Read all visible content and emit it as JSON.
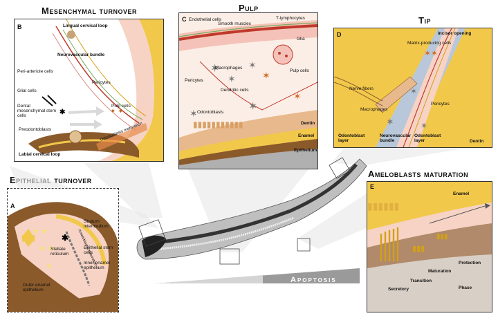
{
  "titles": {
    "mesenchymal": "Mesenchymal turnover",
    "pulp": "Pulp",
    "tip": "Tip",
    "epithelial": "Epithelial turnover",
    "ameloblasts": "Ameloblasts maturation",
    "apoptosis": "Apoptosis"
  },
  "panel_b": {
    "letter": "B",
    "labels": {
      "lingual": "Lingual cervical loop",
      "neurovascular": "Neurovascular bundle",
      "periarteriole": "Peri-arteriole cells",
      "pericytes": "Pericytes",
      "glial": "Glial cells",
      "dental_msc": "Dental mesenchymal stem cells",
      "pulp_cells": "Pulp cells",
      "preodontoblasts": "Preodontoblasts",
      "odonto_maturation": "Odontoblasts maturation",
      "labial": "Labial cervical loop"
    }
  },
  "panel_c": {
    "letter": "C",
    "labels": {
      "endothelial": "Endothelial cells",
      "smooth_muscles": "Smooth muscles",
      "t_lymphocytes": "T-lymphocytes",
      "glia": "Glia",
      "macrophages": "Macrophages",
      "pulp_cells": "Pulp cells",
      "pericytes": "Pericytes",
      "dendritic": "Dendritic cells",
      "odontoblasts": "Odontoblasts",
      "dentin": "Dentin",
      "enamel": "Enamel",
      "epithelium": "Epithelium"
    }
  },
  "panel_d": {
    "letter": "D",
    "labels": {
      "incisor_opening": "Incisor opening",
      "matrix": "Matrix-producing cells",
      "nerve": "Nerve fibers",
      "macrophages": "Macrophages",
      "pericytes": "Pericytes",
      "odonto_layer_left": "Odontoblast layer",
      "neurovascular": "Neurovascular bundle",
      "odonto_layer_right": "Odontoblast layer",
      "dentin": "Dentin"
    }
  },
  "panel_a": {
    "letter": "A",
    "labels": {
      "stratum": "Stratum intermedium",
      "epi_stem": "Epithelial stem cells",
      "stellate": "Stellate reticulum",
      "inner_enamel": "Inner enamel epithelium",
      "outer_enamel": "Outer enamel epithelium",
      "ameloblast_maturation": "Ameloblasts maturation"
    }
  },
  "panel_e": {
    "letter": "E",
    "labels": {
      "enamel": "Enamel",
      "protection": "Protection",
      "maturation": "Maturation",
      "transition": "Transition",
      "secretory": "Secretory",
      "phase": "Phase"
    }
  },
  "colors": {
    "brown": "#8b5a2b",
    "enamel_yellow": "#f2c84b",
    "pink": "#f6d3c5",
    "red": "#c0392b",
    "gray": "#777777"
  }
}
